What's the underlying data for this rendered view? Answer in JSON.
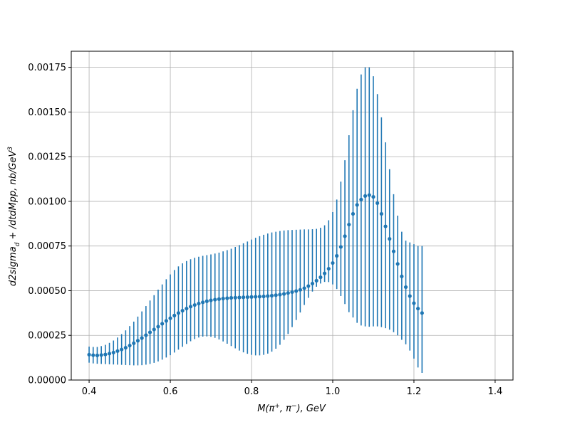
{
  "chart_data": {
    "type": "errorbar-scatter",
    "xlabel": {
      "main": "M(π",
      "sup1": "+",
      "mid": ", π",
      "sup2": "−",
      "tail": "), GeV"
    },
    "ylabel": {
      "main": "d2sigma",
      "sub": "d",
      "mid": " + /dtdMpp, nb/GeV",
      "sup": "3"
    },
    "xlim": [
      0.356,
      1.444
    ],
    "ylim": [
      0.0,
      0.00184
    ],
    "xticks": [
      0.4,
      0.6,
      0.8,
      1.0,
      1.2,
      1.4
    ],
    "xtick_labels": [
      "0.4",
      "0.6",
      "0.8",
      "1.0",
      "1.2",
      "1.4"
    ],
    "yticks": [
      0.0,
      0.00025,
      0.0005,
      0.00075,
      0.001,
      0.00125,
      0.0015,
      0.00175
    ],
    "ytick_labels": [
      "0.00000",
      "0.00025",
      "0.00050",
      "0.00075",
      "0.00100",
      "0.00125",
      "0.00150",
      "0.00175"
    ],
    "grid": true,
    "color": "#1f77b4",
    "x_start": 0.4,
    "x_step": 0.01,
    "y": [
      0.000142,
      0.000139,
      0.000138,
      0.00014,
      0.000143,
      0.000148,
      0.000154,
      0.000162,
      0.000171,
      0.000181,
      0.000193,
      0.000206,
      0.00022,
      0.000235,
      0.000251,
      0.000267,
      0.000283,
      0.000299,
      0.000315,
      0.000331,
      0.000346,
      0.000361,
      0.000375,
      0.000388,
      0.0004,
      0.000411,
      0.00042,
      0.000428,
      0.000435,
      0.000441,
      0.000446,
      0.00045,
      0.000453,
      0.000456,
      0.000458,
      0.00046,
      0.000461,
      0.000462,
      0.000463,
      0.000464,
      0.000465,
      0.000466,
      0.000467,
      0.000468,
      0.00047,
      0.000472,
      0.000475,
      0.000478,
      0.000482,
      0.000487,
      0.000492,
      0.000498,
      0.000505,
      0.000514,
      0.000526,
      0.00054,
      0.000556,
      0.000575,
      0.000597,
      0.000623,
      0.000655,
      0.000695,
      0.000745,
      0.000805,
      0.00087,
      0.00093,
      0.00098,
      0.00101,
      0.00103,
      0.001035,
      0.001025,
      0.00099,
      0.00093,
      0.00086,
      0.00079,
      0.00072,
      0.00065,
      0.00058,
      0.00052,
      0.00047,
      0.00043,
      0.0004,
      0.000375
    ],
    "yerr_low": [
      9.7e-05,
      9.3e-05,
      9.1e-05,
      9e-05,
      8.9e-05,
      8.8e-05,
      8.7e-05,
      8.6e-05,
      8.5e-05,
      8.4e-05,
      8.3e-05,
      8.2e-05,
      8.2e-05,
      8.3e-05,
      8.6e-05,
      9e-05,
      9.6e-05,
      0.000104,
      0.000114,
      0.000126,
      0.000139,
      0.000154,
      0.00017,
      0.000186,
      0.000202,
      0.000217,
      0.000229,
      0.000238,
      0.000243,
      0.000244,
      0.000242,
      0.000236,
      0.000227,
      0.000216,
      0.000203,
      0.00019,
      0.000177,
      0.000165,
      0.000155,
      0.000147,
      0.000141,
      0.000138,
      0.000138,
      0.000141,
      0.000148,
      0.000159,
      0.000175,
      0.000197,
      0.000225,
      0.000258,
      0.000296,
      0.000336,
      0.000378,
      0.00042,
      0.00046,
      0.000495,
      0.000522,
      0.00054,
      0.000549,
      0.000548,
      0.000535,
      0.000509,
      0.00047,
      0.000425,
      0.00038,
      0.00035,
      0.00032,
      0.000305,
      0.0003,
      0.000298,
      0.0003,
      0.0003,
      0.000296,
      0.00029,
      0.000282,
      0.000268,
      0.00025,
      0.000225,
      0.0002,
      0.000165,
      0.00012,
      7e-05,
      4e-05
    ],
    "yerr_high": [
      0.000187,
      0.000185,
      0.000185,
      0.00019,
      0.000197,
      0.000208,
      0.000221,
      0.000238,
      0.000257,
      0.000278,
      0.000302,
      0.000327,
      0.000355,
      0.000384,
      0.000414,
      0.000445,
      0.000475,
      0.000506,
      0.000535,
      0.000564,
      0.000591,
      0.000616,
      0.000636,
      0.000653,
      0.000666,
      0.000676,
      0.000684,
      0.00069,
      0.000695,
      0.000699,
      0.000703,
      0.000708,
      0.000713,
      0.00072,
      0.000727,
      0.000735,
      0.000745,
      0.000755,
      0.000765,
      0.000775,
      0.000786,
      0.000796,
      0.000805,
      0.000813,
      0.00082,
      0.000826,
      0.00083,
      0.000834,
      0.000837,
      0.000839,
      0.00084,
      0.000841,
      0.000842,
      0.000843,
      0.000843,
      0.000844,
      0.000846,
      0.000852,
      0.000866,
      0.000894,
      0.00094,
      0.00101,
      0.00111,
      0.00123,
      0.00137,
      0.00151,
      0.00163,
      0.00171,
      0.00175,
      0.00175,
      0.0017,
      0.0016,
      0.00147,
      0.00133,
      0.00118,
      0.00104,
      0.00092,
      0.00083,
      0.00078,
      0.00077,
      0.00076,
      0.00075,
      0.00075
    ]
  }
}
